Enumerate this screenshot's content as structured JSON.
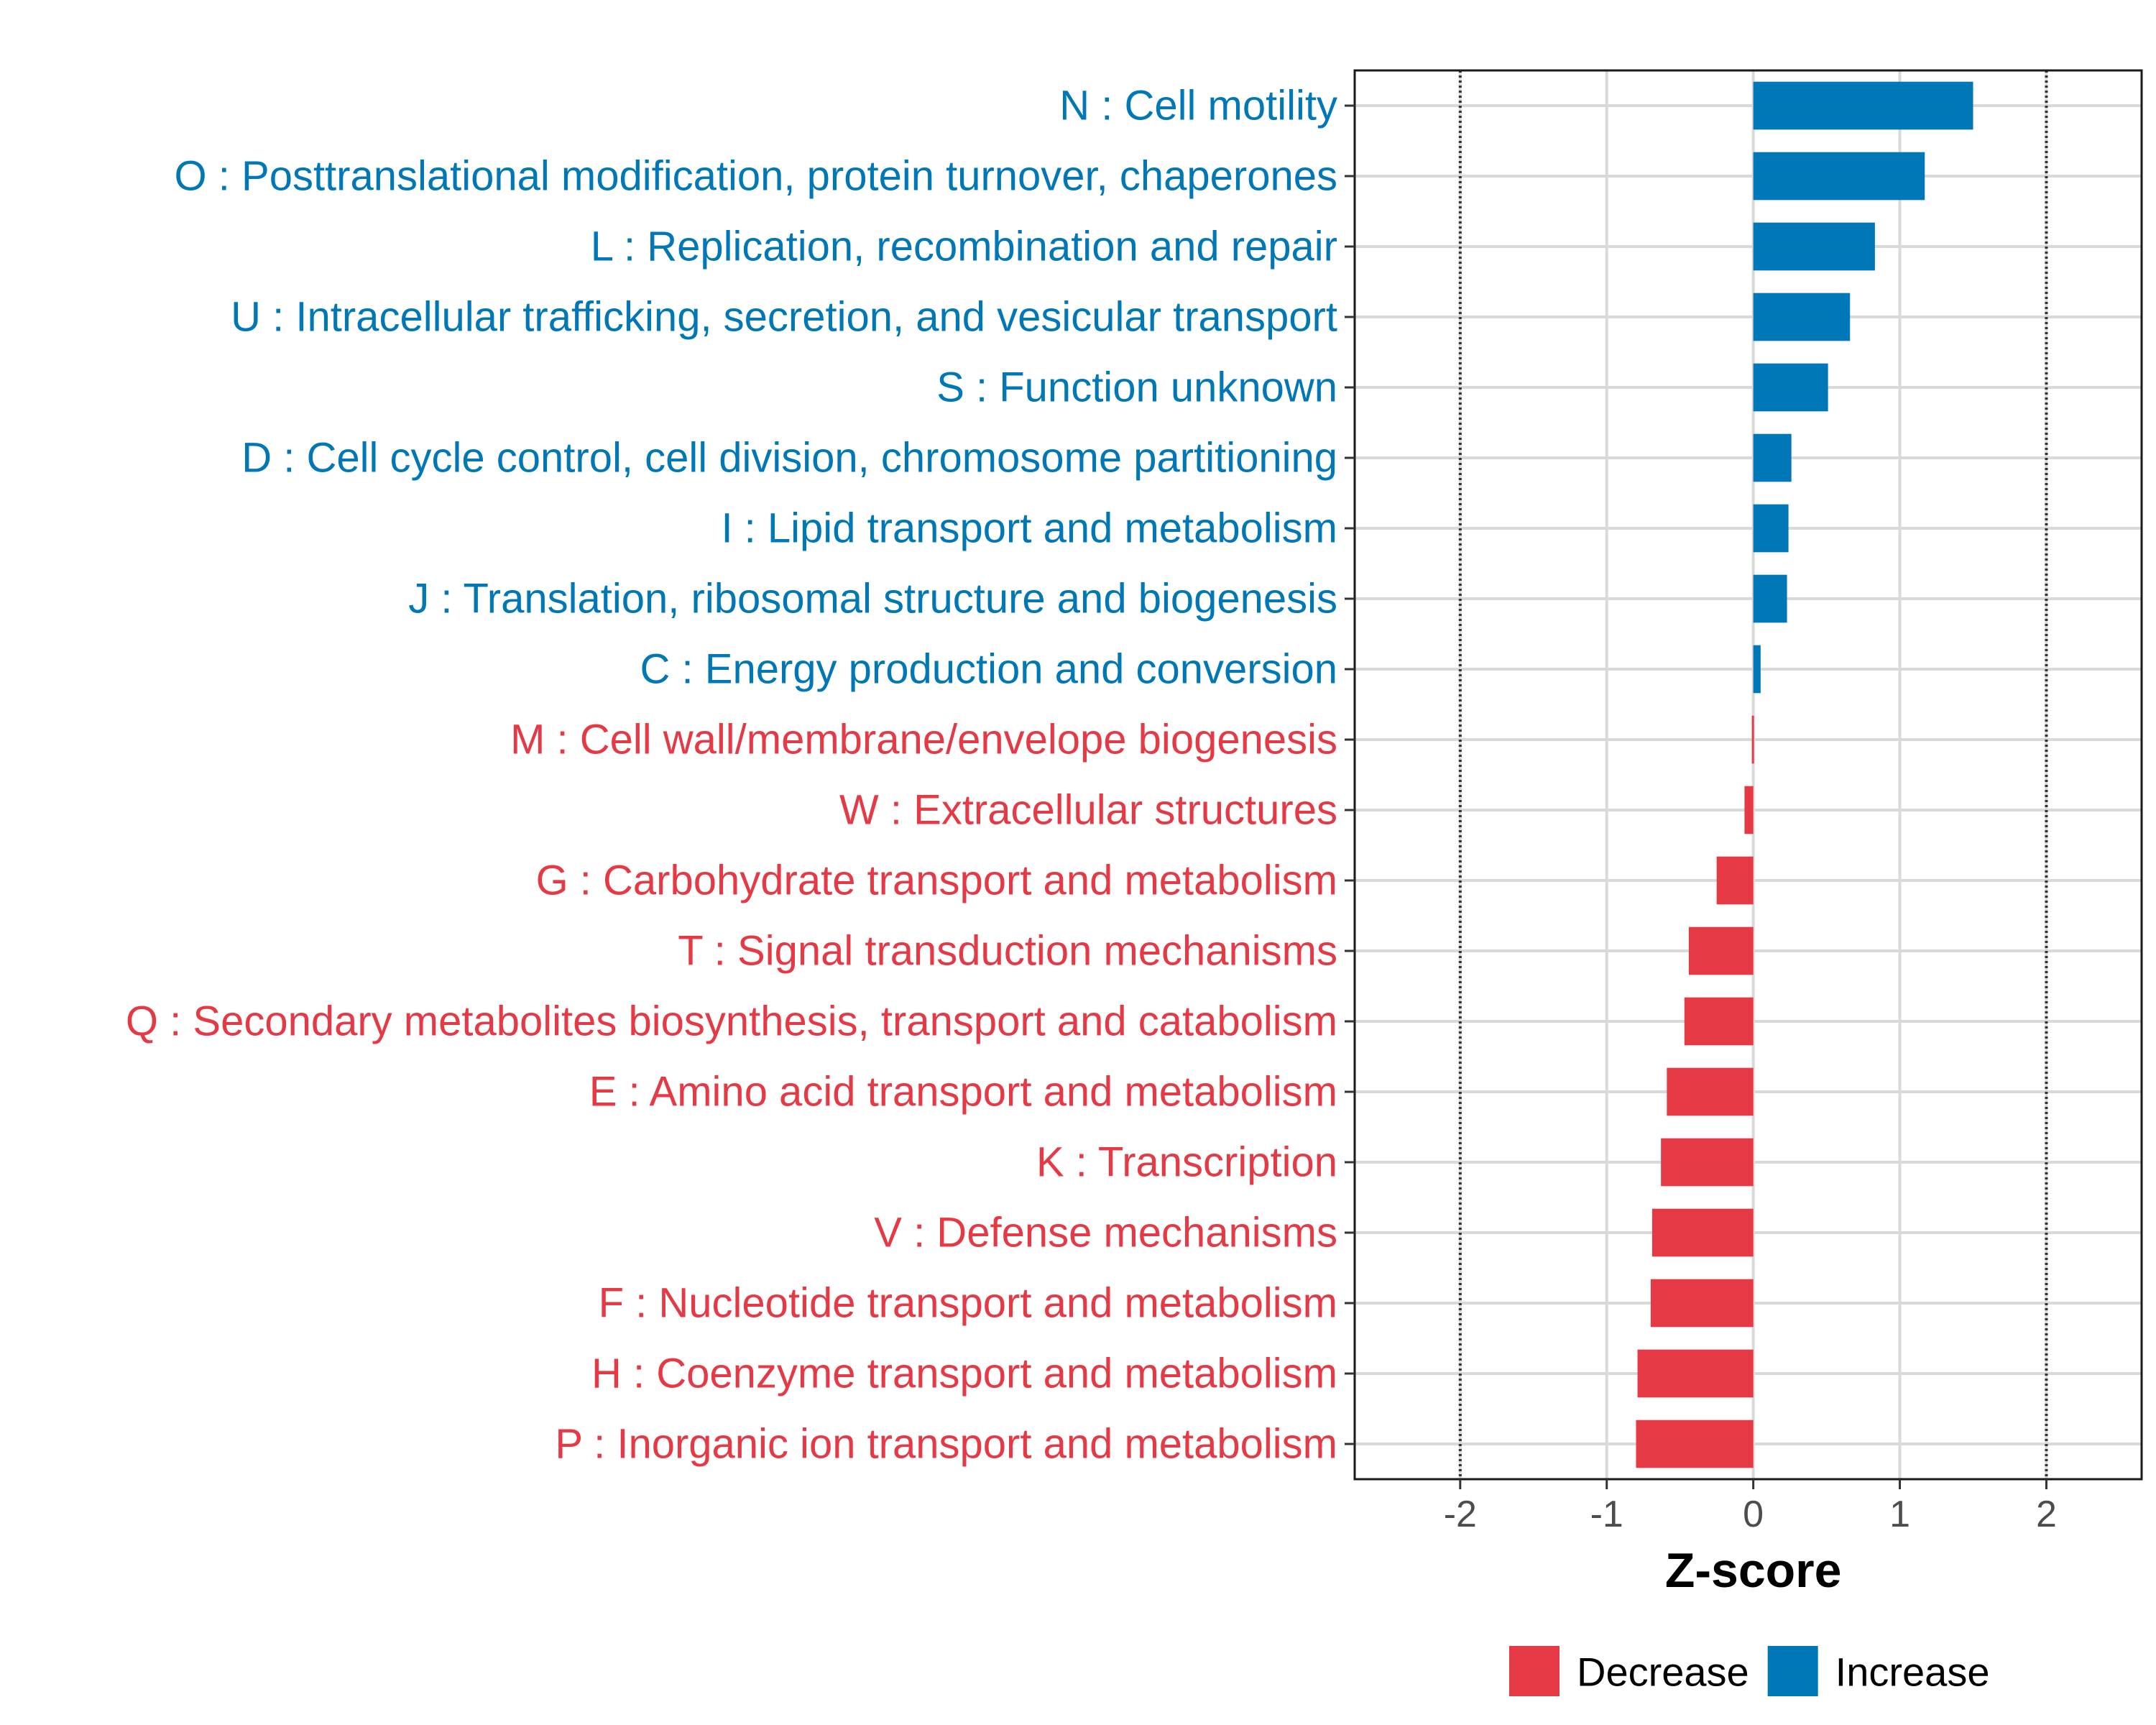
{
  "chart_data": {
    "type": "bar",
    "orientation": "horizontal",
    "title": "",
    "xlabel": "Z-score",
    "ylabel": "",
    "xlim": [
      -2.72,
      2.65
    ],
    "xticks": [
      -2,
      -1,
      0,
      1,
      2
    ],
    "xtick_labels": [
      "-2",
      "-1",
      "0",
      "1",
      "2"
    ],
    "reference_lines": [
      -2,
      2
    ],
    "grid": true,
    "colors": {
      "Decrease": "#e63946",
      "Increase": "#0077b6"
    },
    "categories": [
      "N : Cell motility",
      "O : Posttranslational modification, protein turnover, chaperones",
      "L : Replication, recombination and repair",
      "U : Intracellular trafficking, secretion, and vesicular transport",
      "S : Function unknown",
      "D : Cell cycle control, cell division, chromosome partitioning",
      "I : Lipid transport and metabolism",
      "J : Translation, ribosomal structure and biogenesis",
      "C : Energy production and conversion",
      "M : Cell wall/membrane/envelope biogenesis",
      "W : Extracellular structures",
      "G : Carbohydrate transport and metabolism",
      "T : Signal transduction mechanisms",
      "Q : Secondary metabolites biosynthesis, transport and catabolism",
      "E : Amino acid transport and metabolism",
      "K : Transcription",
      "V : Defense mechanisms",
      "F : Nucleotide transport and metabolism",
      "H : Coenzyme transport and metabolism",
      "P : Inorganic ion transport and metabolism"
    ],
    "values": [
      1.5,
      1.17,
      0.83,
      0.66,
      0.51,
      0.26,
      0.24,
      0.23,
      0.05,
      -0.01,
      -0.06,
      -0.25,
      -0.44,
      -0.47,
      -0.59,
      -0.63,
      -0.69,
      -0.7,
      -0.79,
      -0.8
    ],
    "groups": [
      "Increase",
      "Increase",
      "Increase",
      "Increase",
      "Increase",
      "Increase",
      "Increase",
      "Increase",
      "Increase",
      "Decrease",
      "Decrease",
      "Decrease",
      "Decrease",
      "Decrease",
      "Decrease",
      "Decrease",
      "Decrease",
      "Decrease",
      "Decrease",
      "Decrease"
    ],
    "legend": {
      "position": "bottom",
      "entries": [
        {
          "name": "Decrease",
          "color": "#e63946"
        },
        {
          "name": "Increase",
          "color": "#0077b6"
        }
      ]
    }
  }
}
